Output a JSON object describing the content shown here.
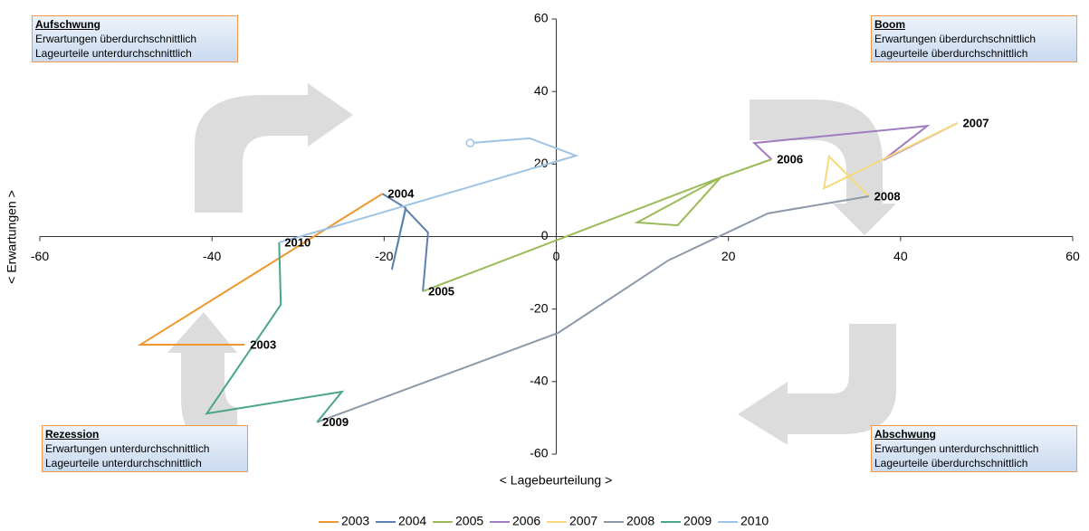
{
  "chart_data": {
    "type": "line",
    "xlabel": "< Lagebeurteilung >",
    "ylabel": "< Erwartungen >",
    "xlim": [
      -60,
      60
    ],
    "ylim": [
      -60,
      60
    ],
    "xticks": [
      -60,
      -40,
      -20,
      0,
      20,
      40,
      60
    ],
    "yticks": [
      -60,
      -40,
      -20,
      0,
      20,
      40,
      60
    ],
    "quadrants": [
      {
        "title": "Aufschwung",
        "lines": [
          "Erwartungen überdurchschnittlich",
          "Lageurteile unterdurchschnittlich"
        ]
      },
      {
        "title": "Boom",
        "lines": [
          "Erwartungen überdurchschnittlich",
          "Lageurteile überdurchschnittlich"
        ]
      },
      {
        "title": "Rezession",
        "lines": [
          "Erwartungen unterdurchschnittlich",
          "Lageurteile unterdurchschnittlich"
        ]
      },
      {
        "title": "Abschwung",
        "lines": [
          "Erwartungen unterdurchschnittlich",
          "Lageurteile überdurchschnittlich"
        ]
      }
    ],
    "series": [
      {
        "name": "2003",
        "color": "#f0962e",
        "x": [
          -36.2,
          -48.3,
          -20.2
        ],
        "values": [
          -29.8,
          -29.8,
          11.8
        ]
      },
      {
        "name": "2004",
        "color": "#5b80ad",
        "x": [
          -20.2,
          -17.5,
          -19.1,
          -17.5,
          -14.9,
          -15.5
        ],
        "values": [
          11.8,
          7.9,
          -9.1,
          7.6,
          1.1,
          -15.1
        ]
      },
      {
        "name": "2005",
        "color": "#9bbb59",
        "x": [
          -15.5,
          19.1,
          9.4,
          14.1,
          19.1,
          25.0
        ],
        "values": [
          -15.1,
          16.3,
          3.9,
          3.1,
          16.3,
          21.3
        ]
      },
      {
        "name": "2006",
        "color": "#a07cc0",
        "x": [
          25.0,
          23.0,
          43.1,
          38.0,
          46.6
        ],
        "values": [
          21.3,
          25.8,
          30.5,
          21.1,
          31.3
        ]
      },
      {
        "name": "2007",
        "color": "#f8d878",
        "x": [
          46.6,
          31.1,
          31.7,
          36.3
        ],
        "values": [
          31.3,
          13.3,
          22.1,
          11.1
        ]
      },
      {
        "name": "2008",
        "color": "#8c99a8",
        "x": [
          36.3,
          24.6,
          13.0,
          0.2,
          -27.8
        ],
        "values": [
          11.1,
          6.4,
          -6.6,
          -26.6,
          -51.2
        ]
      },
      {
        "name": "2009",
        "color": "#4aa58a",
        "x": [
          -27.8,
          -24.9,
          -40.6,
          -32.0,
          -32.2
        ],
        "values": [
          -51.2,
          -42.8,
          -48.8,
          -18.8,
          -1.6
        ]
      },
      {
        "name": "2010",
        "color": "#9dc3e6",
        "x": [
          -32.2,
          -29.9,
          2.3,
          -3.1,
          -10.0
        ],
        "values": [
          -1.6,
          -0.1,
          22.3,
          27.1,
          25.8
        ]
      }
    ]
  }
}
